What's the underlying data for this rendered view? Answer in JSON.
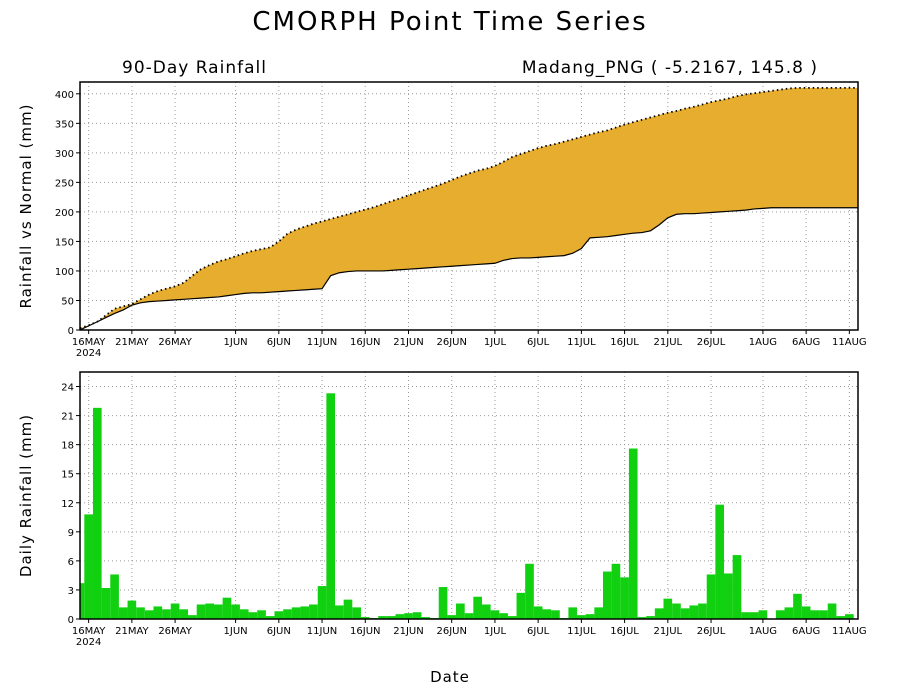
{
  "header": {
    "title": "CMORPH Point Time Series",
    "left_subtitle": "90-Day Rainfall",
    "right_subtitle": "Madang_PNG ( -5.2167, 145.8 )"
  },
  "colors": {
    "surplus_fill": "#e6ad2e",
    "deficit_fill": "#2c3ec8",
    "bar_fill": "#10d010",
    "background": "#ffffff"
  },
  "chart_data": [
    {
      "type": "area",
      "ylabel": "Rainfall vs Normal (mm)",
      "ylim": [
        0,
        420
      ],
      "yticks": [
        0,
        50,
        100,
        150,
        200,
        250,
        300,
        350,
        400
      ],
      "xlim_day": [
        0,
        90
      ],
      "xticks": [
        {
          "day": 1,
          "label": "16MAY",
          "sublabel": "2024"
        },
        {
          "day": 6,
          "label": "21MAY"
        },
        {
          "day": 11,
          "label": "26MAY"
        },
        {
          "day": 18,
          "label": "1JUN"
        },
        {
          "day": 23,
          "label": "6JUN"
        },
        {
          "day": 28,
          "label": "11JUN"
        },
        {
          "day": 33,
          "label": "16JUN"
        },
        {
          "day": 38,
          "label": "21JUN"
        },
        {
          "day": 43,
          "label": "26JUN"
        },
        {
          "day": 48,
          "label": "1JUL"
        },
        {
          "day": 53,
          "label": "6JUL"
        },
        {
          "day": 58,
          "label": "11JUL"
        },
        {
          "day": 63,
          "label": "16JUL"
        },
        {
          "day": 68,
          "label": "21JUL"
        },
        {
          "day": 73,
          "label": "26JUL"
        },
        {
          "day": 79,
          "label": "1AUG"
        },
        {
          "day": 84,
          "label": "6AUG"
        },
        {
          "day": 89,
          "label": "11AUG"
        }
      ],
      "grid": true,
      "series": [
        {
          "key": "actual",
          "style": "dotted",
          "values": [
            3,
            8,
            14,
            25,
            36,
            40,
            44,
            52,
            60,
            66,
            70,
            74,
            80,
            92,
            103,
            110,
            116,
            120,
            125,
            130,
            134,
            137,
            140,
            150,
            163,
            170,
            175,
            180,
            184,
            188,
            192,
            196,
            200,
            204,
            208,
            213,
            218,
            223,
            228,
            233,
            238,
            243,
            248,
            254,
            260,
            265,
            270,
            273,
            278,
            285,
            293,
            298,
            303,
            308,
            312,
            315,
            319,
            323,
            327,
            331,
            335,
            338,
            343,
            348,
            352,
            356,
            360,
            364,
            368,
            371,
            375,
            378,
            382,
            386,
            389,
            392,
            396,
            399,
            401,
            403,
            405,
            407,
            409,
            410,
            410,
            410,
            410,
            410,
            410,
            410,
            410
          ]
        },
        {
          "key": "normal",
          "style": "solid",
          "values": [
            0,
            7,
            14,
            21,
            28,
            34,
            42,
            46,
            48,
            49,
            50,
            51,
            52,
            53,
            54,
            55,
            56,
            58,
            60,
            62,
            63,
            63,
            64,
            65,
            66,
            67,
            68,
            69,
            70,
            92,
            97,
            99,
            100,
            100,
            100,
            100,
            101,
            102,
            103,
            104,
            105,
            106,
            107,
            108,
            109,
            110,
            111,
            112,
            113,
            118,
            121,
            122,
            122,
            123,
            124,
            125,
            126,
            130,
            138,
            156,
            157,
            158,
            160,
            162,
            164,
            165,
            168,
            178,
            190,
            196,
            197,
            197,
            198,
            199,
            200,
            201,
            202,
            203,
            205,
            206,
            207,
            207,
            207,
            207,
            207,
            207,
            207,
            207,
            207,
            207,
            207
          ]
        }
      ]
    },
    {
      "type": "bar",
      "ylabel": "Daily Rainfall (mm)",
      "xlabel": "Date",
      "ylim": [
        0,
        25.5
      ],
      "yticks": [
        0,
        3,
        6,
        9,
        12,
        15,
        18,
        21,
        24
      ],
      "xlim_day": [
        0,
        90
      ],
      "grid": true,
      "values": [
        3.7,
        10.8,
        21.8,
        3.2,
        4.6,
        1.2,
        1.9,
        1.2,
        0.9,
        1.3,
        1.0,
        1.6,
        1.0,
        0.4,
        1.5,
        1.6,
        1.5,
        2.2,
        1.5,
        1.0,
        0.7,
        0.9,
        0.3,
        0.8,
        1.0,
        1.2,
        1.3,
        1.5,
        3.4,
        23.3,
        1.4,
        2.0,
        1.2,
        0.2,
        0.1,
        0.3,
        0.3,
        0.5,
        0.6,
        0.7,
        0.2,
        0.1,
        3.3,
        0.4,
        1.6,
        0.6,
        2.3,
        1.5,
        0.9,
        0.6,
        0.3,
        2.7,
        5.7,
        1.3,
        1.0,
        0.9,
        0.1,
        1.2,
        0.4,
        0.5,
        1.2,
        4.9,
        5.7,
        4.3,
        17.6,
        0.2,
        0.3,
        1.1,
        2.1,
        1.6,
        1.1,
        1.4,
        1.6,
        4.6,
        11.8,
        4.7,
        6.6,
        0.7,
        0.7,
        0.9,
        0.0,
        0.9,
        1.2,
        2.6,
        1.3,
        0.9,
        0.9,
        1.6,
        0.3,
        0.5
      ]
    }
  ]
}
